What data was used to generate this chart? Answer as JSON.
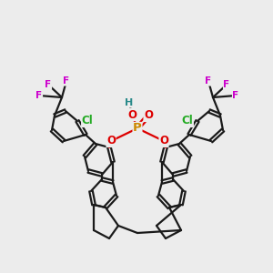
{
  "bg_color": "#ececec",
  "atom_colors": {
    "C": "#1a1a1a",
    "H": "#2a8a8a",
    "O": "#dd0000",
    "P": "#cc8800",
    "Cl": "#22aa22",
    "F": "#cc00cc"
  },
  "bond_color": "#1a1a1a",
  "bond_width": 1.6,
  "figsize": [
    3.0,
    3.0
  ],
  "dpi": 100
}
